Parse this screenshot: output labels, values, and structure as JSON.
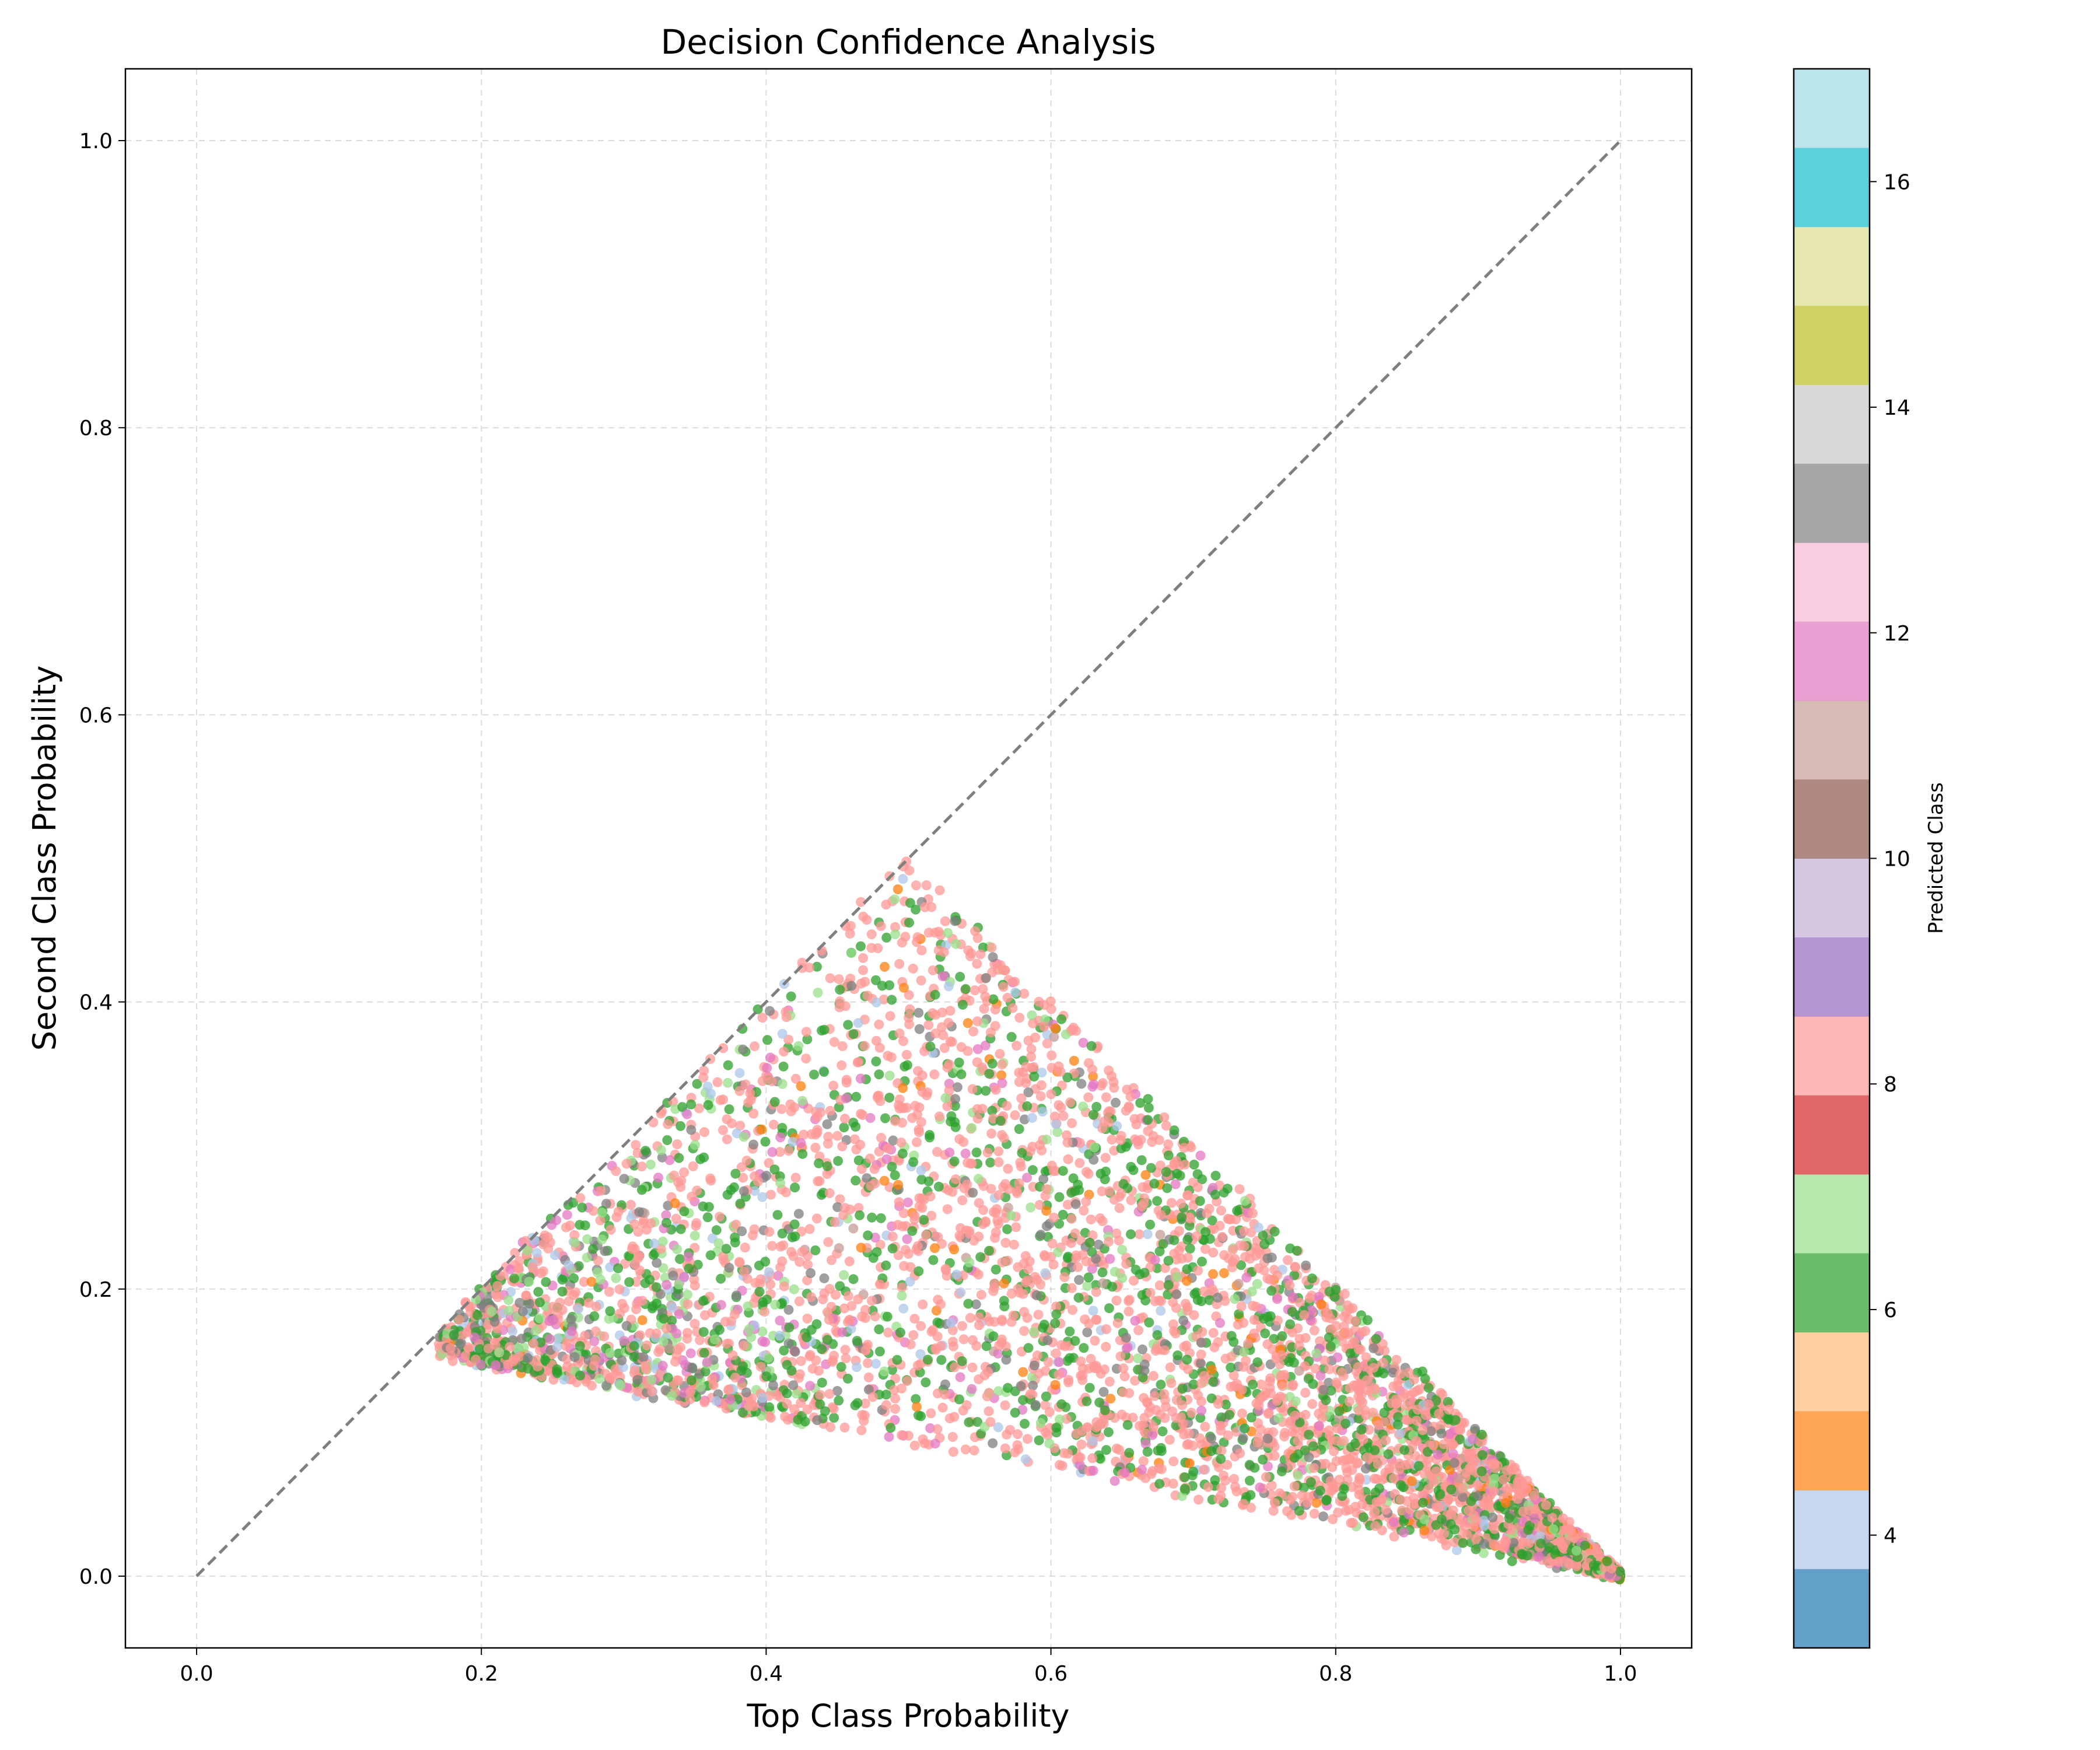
{
  "chart_data": {
    "type": "scatter",
    "title": "Decision Confidence Analysis",
    "xlabel": "Top Class Probability",
    "ylabel": "Second Class Probability",
    "xlim": [
      -0.05,
      1.05
    ],
    "ylim": [
      -0.05,
      1.05
    ],
    "x_ticks": [
      "0.0",
      "0.2",
      "0.4",
      "0.6",
      "0.8",
      "1.0"
    ],
    "y_ticks": [
      "0.0",
      "0.2",
      "0.4",
      "0.6",
      "0.8",
      "1.0"
    ],
    "grid": true,
    "reference_line": {
      "style": "dashed",
      "color": "#7f7f7f",
      "from": [
        0,
        0
      ],
      "to": [
        1,
        1
      ]
    },
    "region": {
      "vertices": [
        [
          0.17,
          0.17
        ],
        [
          0.5,
          0.5
        ],
        [
          1.0,
          0.0
        ],
        [
          0.17,
          0.155
        ]
      ],
      "description_points": "points fill the triangle bounded by y<=x, x+y<=1, lower edge from (0.17,0.15) to (1.0,0.0)"
    },
    "point_series": [
      {
        "class": 8,
        "color": "#ff9896",
        "share": 0.55
      },
      {
        "class": 6,
        "color": "#2ca02c",
        "share": 0.25
      },
      {
        "class": 13,
        "color": "#7f7f7f",
        "share": 0.06
      },
      {
        "class": 12,
        "color": "#e377c2",
        "share": 0.05
      },
      {
        "class": 7,
        "color": "#98df8a",
        "share": 0.04
      },
      {
        "class": 5,
        "color": "#ff7f0e",
        "share": 0.02
      },
      {
        "class": 4,
        "color": "#aec7e8",
        "share": 0.02
      },
      {
        "class": 11,
        "color": "#c49c94",
        "share": 0.01
      }
    ],
    "colorbar": {
      "label": "Predicted Class",
      "range": [
        3,
        17
      ],
      "ticks": [
        "4",
        "6",
        "8",
        "10",
        "12",
        "14",
        "16"
      ],
      "bands": [
        "#1f77b4",
        "#aec7e8",
        "#ff7f0e",
        "#ffbb78",
        "#2ca02c",
        "#98df8a",
        "#d62728",
        "#ff9896",
        "#9467bd",
        "#c5b0d5",
        "#8c564b",
        "#c49c94",
        "#e377c2",
        "#f7b6d2",
        "#7f7f7f",
        "#c7c7c7",
        "#bcbd22",
        "#dbdb8d",
        "#17becf",
        "#9edae5"
      ]
    }
  }
}
